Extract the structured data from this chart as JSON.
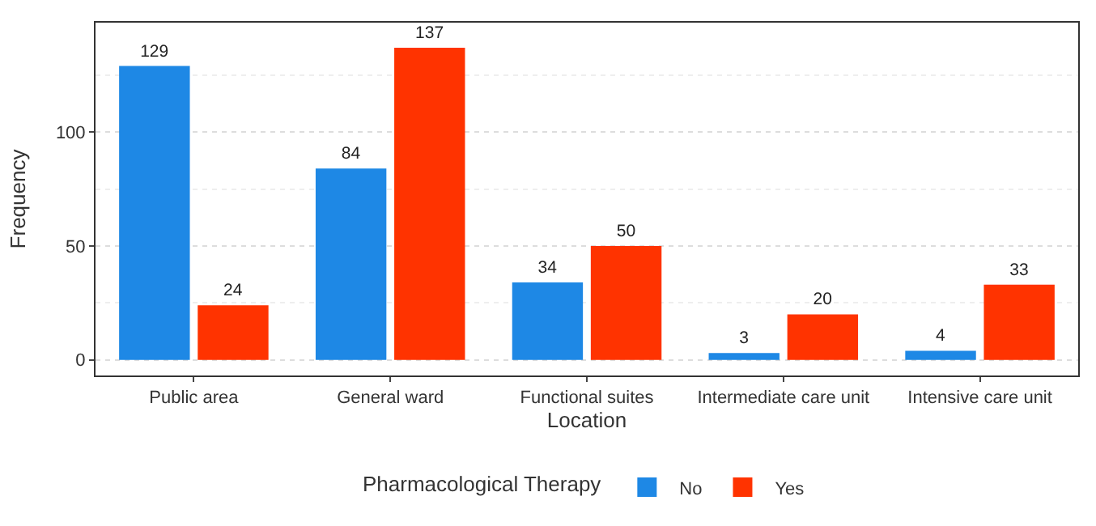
{
  "chart_data": {
    "type": "bar",
    "xlabel": "Location",
    "ylabel": "Frequency",
    "legend_title": "Pharmacological Therapy",
    "categories": [
      "Public area",
      "General ward",
      "Functional suites",
      "Intermediate care unit",
      "Intensive care unit"
    ],
    "series": [
      {
        "name": "No",
        "color": "#1e88e5",
        "values": [
          129,
          84,
          34,
          3,
          4
        ]
      },
      {
        "name": "Yes",
        "color": "#ff3300",
        "values": [
          24,
          137,
          50,
          20,
          33
        ]
      }
    ],
    "ylim": [
      -6.85,
      148
    ],
    "yticks": [
      0,
      50,
      100
    ],
    "grid": "y",
    "legend": "bottom",
    "data_labels": true
  }
}
